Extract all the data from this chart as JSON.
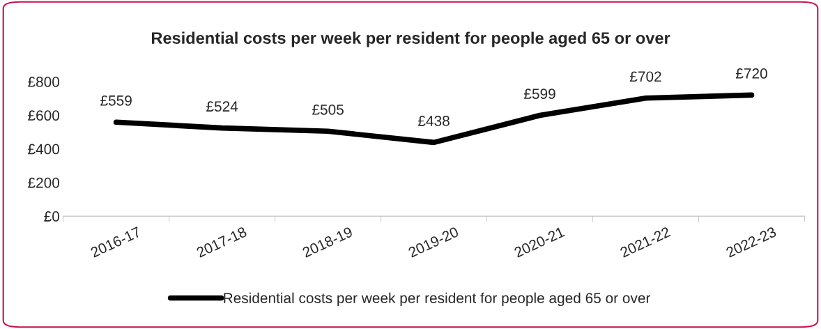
{
  "chart_data": {
    "type": "line",
    "title": "Residential costs per week per resident for people aged 65 or over",
    "categories": [
      "2016-17",
      "2017-18",
      "2018-19",
      "2019-20",
      "2020-21",
      "2021-22",
      "2022-23"
    ],
    "series": [
      {
        "name": "Residential costs per week per resident for people aged 65 or over",
        "color": "#000000",
        "values": [
          559,
          524,
          505,
          438,
          599,
          702,
          720
        ],
        "value_labels": [
          "£559",
          "£524",
          "£505",
          "£438",
          "£599",
          "£702",
          "£720"
        ]
      }
    ],
    "ylim": [
      0,
      800
    ],
    "yticks": [
      {
        "value": 0,
        "label": "£0"
      },
      {
        "value": 200,
        "label": "£200"
      },
      {
        "value": 400,
        "label": "£400"
      },
      {
        "value": 600,
        "label": "£600"
      },
      {
        "value": 800,
        "label": "£800"
      }
    ],
    "grid": false,
    "legend": "bottom",
    "marker": "none",
    "line_style": "solid"
  }
}
